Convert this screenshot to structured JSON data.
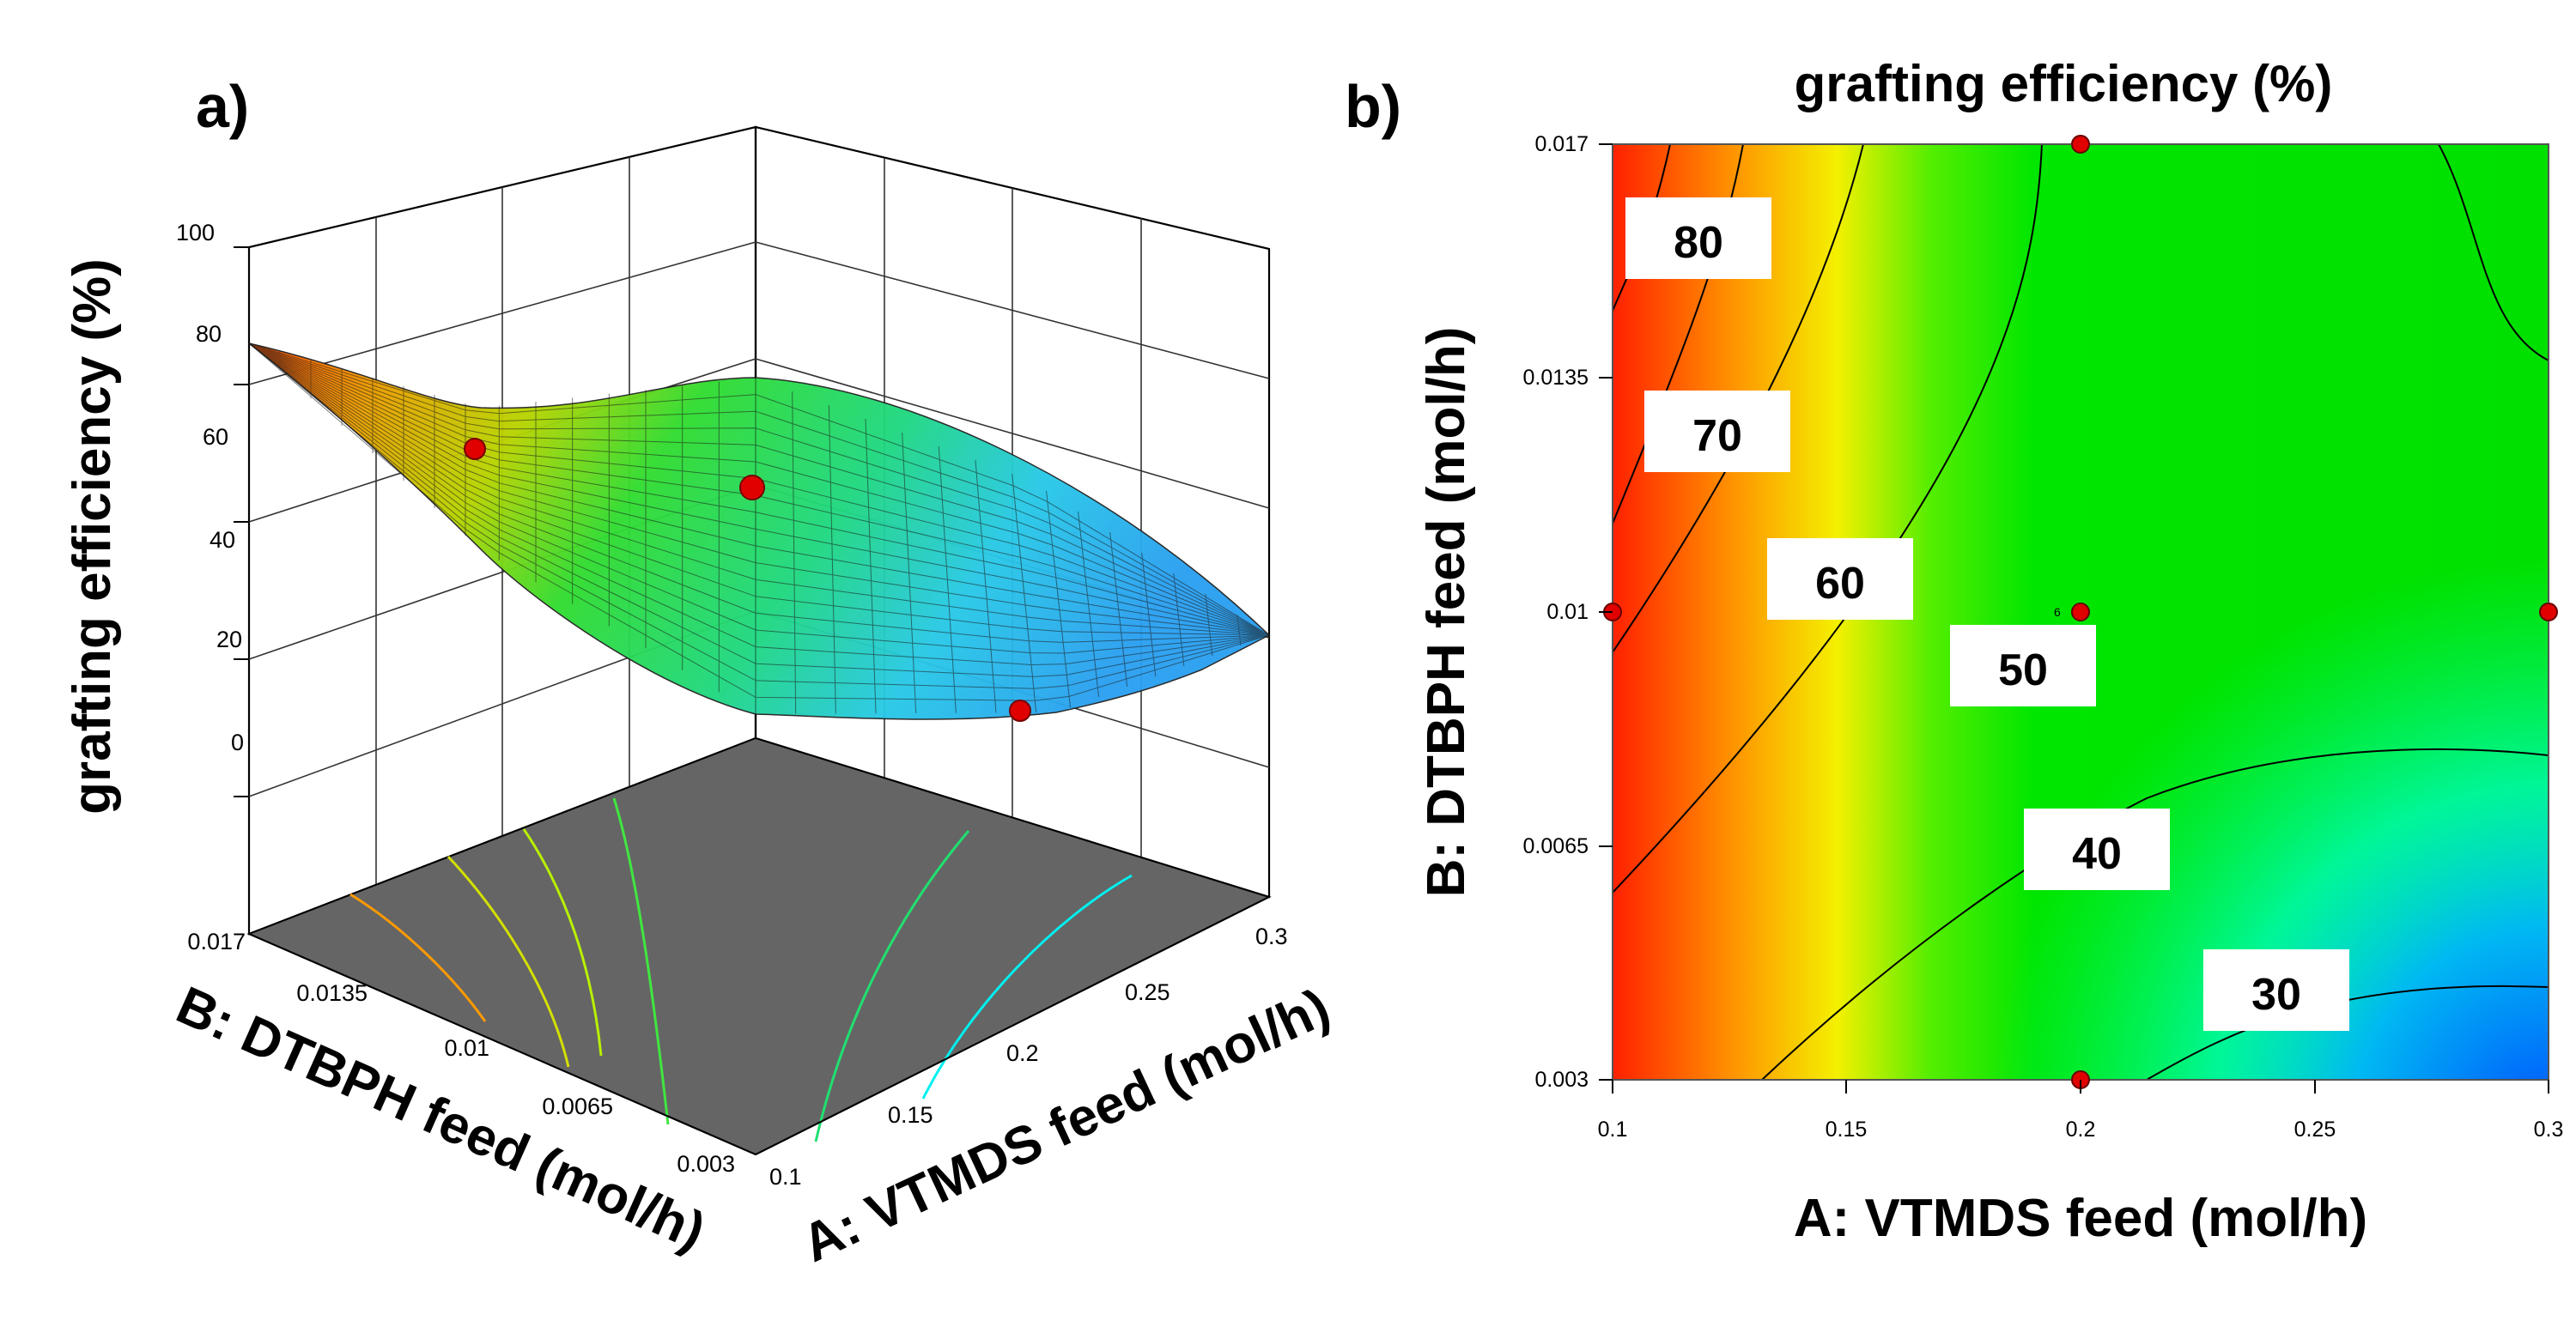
{
  "chart_data": [
    {
      "panel": "a)",
      "type": "surface3d",
      "zlabel": "grafting efficiency (%)",
      "xlabel": "A: VTMDS feed (mol/h)",
      "ylabel": "B: DTBPH feed (mol/h)",
      "x_ticks": [
        "0.1",
        "0.15",
        "0.2",
        "0.25",
        "0.3"
      ],
      "y_ticks": [
        "0.017",
        "0.0135",
        "0.01",
        "0.0065",
        "0.003"
      ],
      "z_ticks": [
        "0",
        "20",
        "40",
        "60",
        "80",
        "100"
      ],
      "xlim": [
        0.1,
        0.3
      ],
      "ylim": [
        0.003,
        0.017
      ],
      "zlim": [
        0,
        100
      ],
      "design_points": [
        {
          "A": 0.1,
          "B": 0.01,
          "efficiency": 60
        },
        {
          "A": 0.2,
          "B": 0.01,
          "efficiency": 52
        },
        {
          "A": 0.3,
          "B": 0.01,
          "efficiency": 42
        }
      ]
    },
    {
      "panel": "b)",
      "type": "contour",
      "title": "grafting efficiency (%)",
      "xlabel": "A: VTMDS feed (mol/h)",
      "ylabel": "B: DTBPH feed (mol/h)",
      "x_ticks": [
        "0.1",
        "0.15",
        "0.2",
        "0.25",
        "0.3"
      ],
      "y_ticks": [
        "0.003",
        "0.0065",
        "0.01",
        "0.0135",
        "0.017"
      ],
      "xlim": [
        0.1,
        0.3
      ],
      "ylim": [
        0.003,
        0.017
      ],
      "contour_levels": [
        30,
        40,
        50,
        60,
        70,
        80
      ],
      "contour_labels": [
        "80",
        "70",
        "60",
        "50",
        "40",
        "30"
      ],
      "center_replicates_label": "6",
      "design_points": [
        {
          "A": 0.2,
          "B": 0.017
        },
        {
          "A": 0.1,
          "B": 0.01
        },
        {
          "A": 0.2,
          "B": 0.01
        },
        {
          "A": 0.3,
          "B": 0.01
        },
        {
          "A": 0.2,
          "B": 0.003
        }
      ]
    }
  ]
}
